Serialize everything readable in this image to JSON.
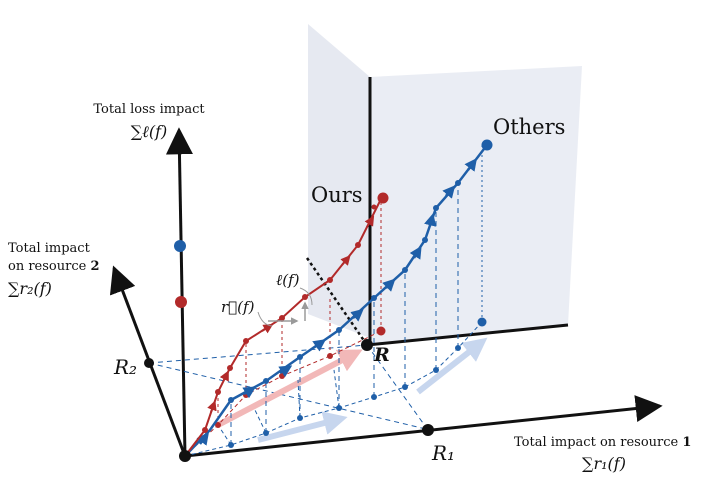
{
  "labels": {
    "z_axis_title": "Total loss impact",
    "z_axis_formula": "∑ℓ(f)",
    "y_axis_title_line1": "Total impact",
    "y_axis_title_line2_prefix": "on resource ",
    "y_axis_title_line2_num": "2",
    "y_axis_formula": "∑r₂(f)",
    "x_axis_title_prefix": "Total impact on resource ",
    "x_axis_title_num": "1",
    "x_axis_formula": "∑r₁(f)",
    "R1": "R₁",
    "R2": "R₂",
    "R": "R",
    "ell_f": "ℓ(f)",
    "r_vec_f": "r⃗(f)",
    "ours": "Ours",
    "others": "Others"
  },
  "colors": {
    "ours": "#b22a2a",
    "others": "#1f5fa8",
    "plane": "#e6e9f2",
    "axis": "#111111",
    "ours_light": "#f2b8b8",
    "others_light": "#c7d6ee"
  }
}
